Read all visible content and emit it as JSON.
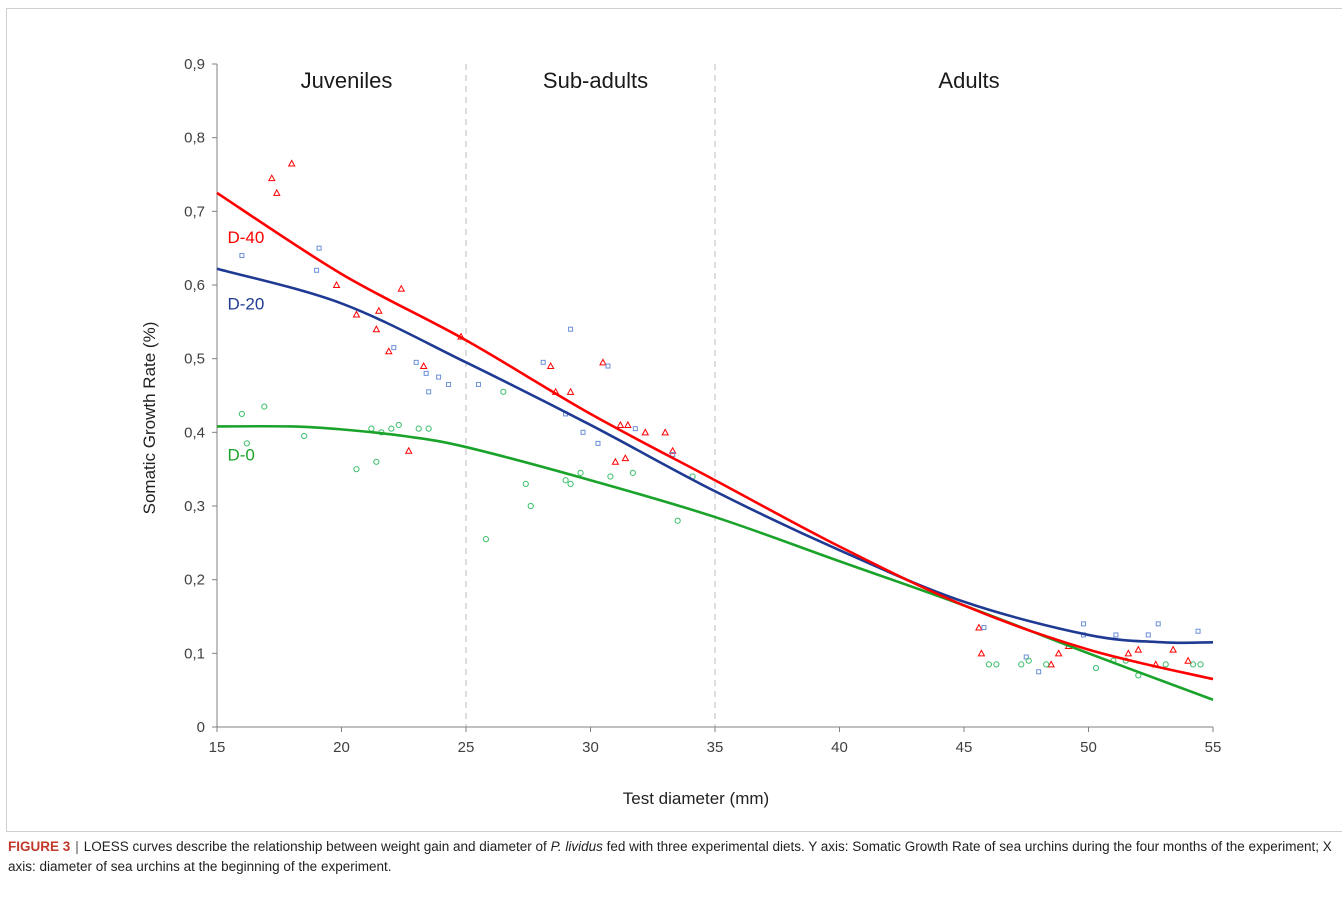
{
  "chart_data": {
    "type": "scatter",
    "xlabel": "Test diameter (mm)",
    "ylabel": "Somatic Growth Rate (%)",
    "xlim": [
      15,
      55
    ],
    "ylim": [
      0,
      0.9
    ],
    "x_ticks": [
      "15",
      "20",
      "25",
      "30",
      "35",
      "40",
      "45",
      "50",
      "55"
    ],
    "y_ticks": [
      "0",
      "0,1",
      "0,2",
      "0,3",
      "0,4",
      "0,5",
      "0,6",
      "0,7",
      "0,8",
      "0,9"
    ],
    "grid": false,
    "phase_dividers": [
      25,
      35
    ],
    "phases": [
      {
        "label": "Juveniles",
        "x": 20
      },
      {
        "label": "Sub-adults",
        "x": 30
      },
      {
        "label": "Adults",
        "x": 45
      }
    ],
    "series": [
      {
        "name": "D-40",
        "color": "#ff0000",
        "marker": "triangle",
        "label_at": [
          15.5,
          0.665
        ],
        "curve": [
          [
            15,
            0.725
          ],
          [
            20,
            0.615
          ],
          [
            25,
            0.525
          ],
          [
            30,
            0.425
          ],
          [
            35,
            0.335
          ],
          [
            40,
            0.245
          ],
          [
            45,
            0.165
          ],
          [
            50,
            0.105
          ],
          [
            55,
            0.065
          ]
        ],
        "points": [
          [
            17.2,
            0.745
          ],
          [
            17.4,
            0.725
          ],
          [
            18.0,
            0.765
          ],
          [
            19.8,
            0.6
          ],
          [
            20.6,
            0.56
          ],
          [
            21.4,
            0.54
          ],
          [
            21.5,
            0.565
          ],
          [
            21.9,
            0.51
          ],
          [
            22.4,
            0.595
          ],
          [
            22.7,
            0.375
          ],
          [
            23.3,
            0.49
          ],
          [
            24.8,
            0.53
          ],
          [
            28.4,
            0.49
          ],
          [
            28.6,
            0.455
          ],
          [
            29.2,
            0.455
          ],
          [
            30.5,
            0.495
          ],
          [
            31.0,
            0.36
          ],
          [
            31.2,
            0.41
          ],
          [
            31.5,
            0.41
          ],
          [
            31.4,
            0.365
          ],
          [
            32.2,
            0.4
          ],
          [
            33.0,
            0.4
          ],
          [
            33.3,
            0.375
          ],
          [
            45.6,
            0.135
          ],
          [
            45.7,
            0.1
          ],
          [
            48.5,
            0.085
          ],
          [
            48.8,
            0.1
          ],
          [
            49.2,
            0.11
          ],
          [
            51.6,
            0.1
          ],
          [
            52.0,
            0.105
          ],
          [
            52.7,
            0.085
          ],
          [
            53.4,
            0.105
          ],
          [
            54.0,
            0.09
          ]
        ]
      },
      {
        "name": "D-20",
        "color": "#1f3a93",
        "point_color": "#6b8fd9",
        "marker": "square",
        "label_at": [
          15.5,
          0.575
        ],
        "curve": [
          [
            15,
            0.622
          ],
          [
            20,
            0.575
          ],
          [
            25,
            0.495
          ],
          [
            30,
            0.41
          ],
          [
            35,
            0.32
          ],
          [
            40,
            0.24
          ],
          [
            45,
            0.17
          ],
          [
            50,
            0.125
          ],
          [
            53,
            0.115
          ],
          [
            55,
            0.115
          ]
        ],
        "points": [
          [
            16.0,
            0.64
          ],
          [
            19.0,
            0.62
          ],
          [
            19.1,
            0.65
          ],
          [
            22.1,
            0.515
          ],
          [
            23.0,
            0.495
          ],
          [
            23.4,
            0.48
          ],
          [
            23.5,
            0.455
          ],
          [
            23.9,
            0.475
          ],
          [
            24.3,
            0.465
          ],
          [
            25.5,
            0.465
          ],
          [
            28.1,
            0.495
          ],
          [
            29.0,
            0.425
          ],
          [
            29.2,
            0.54
          ],
          [
            29.7,
            0.4
          ],
          [
            30.3,
            0.385
          ],
          [
            30.7,
            0.49
          ],
          [
            31.8,
            0.405
          ],
          [
            33.3,
            0.37
          ],
          [
            45.8,
            0.135
          ],
          [
            47.5,
            0.095
          ],
          [
            48.0,
            0.075
          ],
          [
            49.8,
            0.14
          ],
          [
            49.8,
            0.125
          ],
          [
            51.1,
            0.125
          ],
          [
            52.4,
            0.125
          ],
          [
            52.8,
            0.14
          ],
          [
            54.4,
            0.13
          ]
        ]
      },
      {
        "name": "D-0",
        "color": "#1aa32a",
        "point_color": "#3cbf6a",
        "marker": "circle",
        "label_at": [
          15.5,
          0.37
        ],
        "curve": [
          [
            15,
            0.408
          ],
          [
            18,
            0.408
          ],
          [
            20,
            0.404
          ],
          [
            22.5,
            0.395
          ],
          [
            25,
            0.38
          ],
          [
            30,
            0.335
          ],
          [
            35,
            0.285
          ],
          [
            40,
            0.225
          ],
          [
            45,
            0.165
          ],
          [
            50,
            0.1
          ],
          [
            55,
            0.037
          ]
        ],
        "points": [
          [
            16.0,
            0.425
          ],
          [
            16.2,
            0.385
          ],
          [
            16.9,
            0.435
          ],
          [
            18.5,
            0.395
          ],
          [
            20.6,
            0.35
          ],
          [
            21.2,
            0.405
          ],
          [
            21.4,
            0.36
          ],
          [
            21.6,
            0.4
          ],
          [
            22.0,
            0.405
          ],
          [
            22.3,
            0.41
          ],
          [
            23.1,
            0.405
          ],
          [
            23.5,
            0.405
          ],
          [
            25.8,
            0.255
          ],
          [
            26.5,
            0.455
          ],
          [
            27.4,
            0.33
          ],
          [
            27.6,
            0.3
          ],
          [
            29.0,
            0.335
          ],
          [
            29.2,
            0.33
          ],
          [
            29.6,
            0.345
          ],
          [
            30.8,
            0.34
          ],
          [
            31.7,
            0.345
          ],
          [
            33.5,
            0.28
          ],
          [
            34.1,
            0.34
          ],
          [
            46.0,
            0.085
          ],
          [
            46.3,
            0.085
          ],
          [
            47.3,
            0.085
          ],
          [
            47.6,
            0.09
          ],
          [
            48.3,
            0.085
          ],
          [
            50.3,
            0.08
          ],
          [
            51.0,
            0.09
          ],
          [
            51.5,
            0.09
          ],
          [
            52.0,
            0.07
          ],
          [
            53.1,
            0.085
          ],
          [
            54.2,
            0.085
          ],
          [
            54.5,
            0.085
          ]
        ]
      }
    ]
  },
  "caption": {
    "label": "FIGURE 3",
    "separator": "|",
    "text_before": "LOESS curves describe the relationship between weight gain and diameter of",
    "species": "P. lividus",
    "text_after": "fed with three experimental diets. Y axis: Somatic Growth Rate of sea urchins during the four months of the experiment; X axis: diameter of sea urchins at the beginning of the experiment."
  }
}
